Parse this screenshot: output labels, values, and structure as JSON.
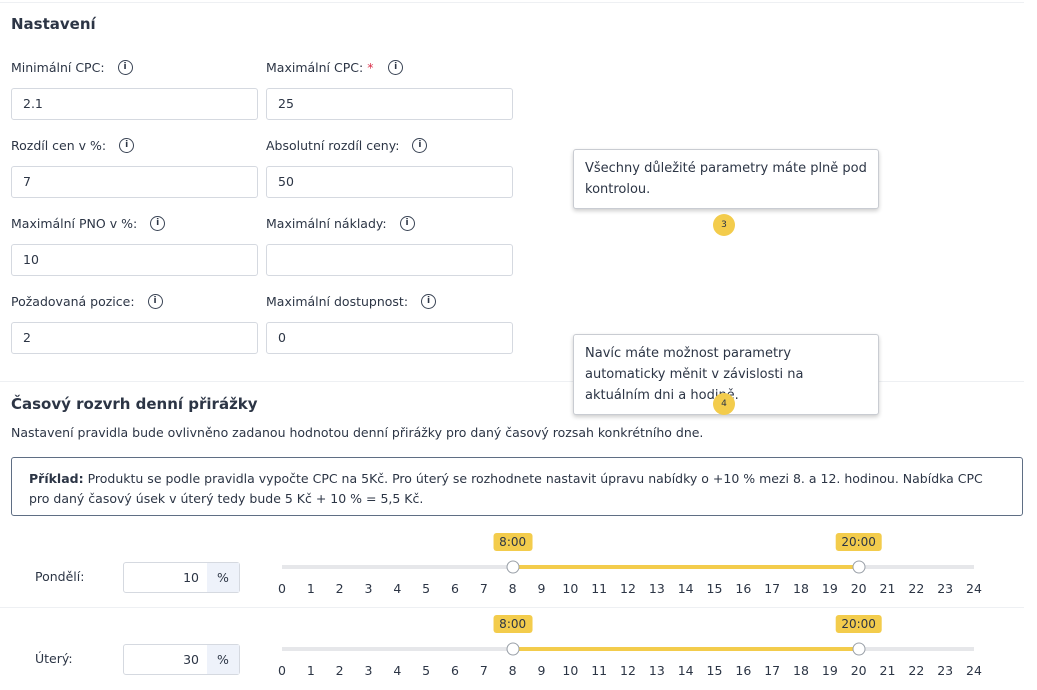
{
  "settings": {
    "title": "Nastavení",
    "fields": [
      {
        "label": "Minimální CPC:",
        "value": "2.1"
      },
      {
        "label": "Maximální CPC:",
        "required_mark": "*",
        "value": "25"
      },
      {
        "label": "Rozdíl cen v %:",
        "value": "7"
      },
      {
        "label": "Absolutní rozdíl ceny:",
        "value": "50"
      },
      {
        "label": "Maximální PNO v %:",
        "value": "10"
      },
      {
        "label": "Maximální náklady:"
      },
      {
        "label": "Požadovaná pozice:",
        "value": "2"
      },
      {
        "label": "Maximální dostupnost:",
        "value": "0"
      }
    ]
  },
  "tooltips": [
    {
      "text": "Všechny důležité parametry máte plně pod kontrolou.",
      "step": "3"
    },
    {
      "text": "Navíc máte možnost parametry automaticky měnit v závislosti na aktuálním dni a hodině.",
      "step": "4"
    }
  ],
  "schedule": {
    "title": "Časový rozvrh denní přirážky",
    "description": "Nastavení pravidla bude ovlivněno zadanou hodnotou denní přirážky pro daný časový rozsah konkrétního dne.",
    "example": {
      "label": "Příklad:",
      "text": "Produktu se podle pravidla vypočte CPC na 5Kč. Pro úterý se rozhodnete nastavit úpravu nabídky o +10 % mezi 8. a 12. hodinou. Nabídka CPC pro daný časový úsek v úterý tedy bude 5 Kč + 10 % = 5,5 Kč."
    },
    "unit": "%",
    "hours": [
      0,
      1,
      2,
      3,
      4,
      5,
      6,
      7,
      8,
      9,
      10,
      11,
      12,
      13,
      14,
      15,
      16,
      17,
      18,
      19,
      20,
      21,
      22,
      23,
      24
    ],
    "days": [
      {
        "name": "Pondělí:",
        "value": "10",
        "from": 8,
        "from_label": "8:00",
        "to": 20,
        "to_label": "20:00"
      },
      {
        "name": "Úterý:",
        "value": "30",
        "from": 8,
        "from_label": "8:00",
        "to": 20,
        "to_label": "20:00"
      }
    ]
  }
}
